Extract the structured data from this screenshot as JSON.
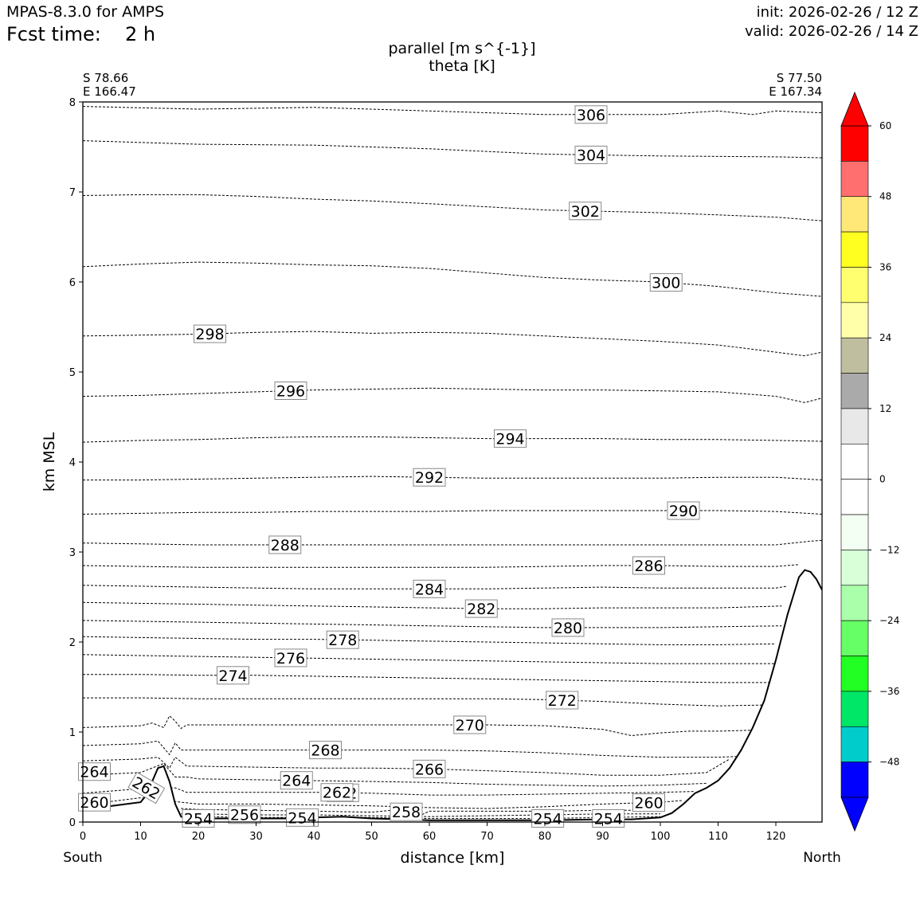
{
  "header": {
    "model": "MPAS-8.3.0 for AMPS",
    "fcst_label": "Fcst time:",
    "fcst_value": "2 h",
    "init": "init: 2026-02-26 / 12 Z",
    "valid": "valid: 2026-02-26 / 14 Z"
  },
  "chart_data": {
    "type": "line",
    "title": "parallel [m s^{-1}]",
    "subtitle": "theta [K]",
    "xlabel": "distance [km]",
    "ylabel": "km MSL",
    "xlim": [
      0,
      128
    ],
    "ylim": [
      0,
      8
    ],
    "xticks": [
      0,
      10,
      20,
      30,
      40,
      50,
      60,
      70,
      80,
      90,
      100,
      110,
      120
    ],
    "yticks": [
      0,
      1,
      2,
      3,
      4,
      5,
      6,
      7,
      8
    ],
    "left_end": {
      "lat": "S 78.66",
      "lon": "E 166.47",
      "direction": "South"
    },
    "right_end": {
      "lat": "S 77.50",
      "lon": "E 167.34",
      "direction": "North"
    },
    "terrain": {
      "x": [
        0,
        5,
        10,
        11,
        12,
        13,
        14,
        15,
        16,
        17,
        18,
        20,
        25,
        30,
        35,
        40,
        45,
        50,
        60,
        70,
        80,
        90,
        95,
        100,
        102,
        104,
        106,
        108,
        110,
        112,
        114,
        116,
        118,
        120,
        122,
        124,
        125,
        126,
        127,
        128
      ],
      "y": [
        0.15,
        0.18,
        0.22,
        0.3,
        0.45,
        0.6,
        0.62,
        0.45,
        0.2,
        0.06,
        0.04,
        0.04,
        0.04,
        0.04,
        0.04,
        0.05,
        0.06,
        0.04,
        0.02,
        0.02,
        0.02,
        0.03,
        0.03,
        0.05,
        0.1,
        0.2,
        0.32,
        0.38,
        0.46,
        0.6,
        0.8,
        1.05,
        1.35,
        1.8,
        2.3,
        2.72,
        2.8,
        2.78,
        2.7,
        2.58
      ]
    },
    "isentropes": [
      {
        "theta": 306,
        "x": [
          0,
          20,
          40,
          60,
          80,
          100,
          110,
          116,
          120,
          128
        ],
        "y": [
          7.95,
          7.92,
          7.94,
          7.9,
          7.86,
          7.86,
          7.9,
          7.86,
          7.9,
          7.88
        ],
        "label_at": 88
      },
      {
        "theta": 304,
        "x": [
          0,
          20,
          40,
          60,
          80,
          100,
          120,
          128
        ],
        "y": [
          7.57,
          7.53,
          7.52,
          7.48,
          7.42,
          7.4,
          7.39,
          7.38
        ],
        "label_at": 88
      },
      {
        "theta": 302,
        "x": [
          0,
          10,
          20,
          30,
          40,
          50,
          60,
          80,
          100,
          120,
          128
        ],
        "y": [
          6.96,
          6.97,
          6.97,
          6.95,
          6.92,
          6.9,
          6.87,
          6.8,
          6.77,
          6.72,
          6.68
        ],
        "label_at": 87
      },
      {
        "theta": 300,
        "x": [
          0,
          10,
          20,
          30,
          40,
          50,
          60,
          70,
          80,
          90,
          100,
          110,
          120,
          128
        ],
        "y": [
          6.17,
          6.2,
          6.22,
          6.21,
          6.19,
          6.18,
          6.15,
          6.1,
          6.05,
          6.02,
          6.0,
          5.95,
          5.88,
          5.84
        ],
        "label_at": 101
      },
      {
        "theta": 298,
        "x": [
          0,
          10,
          20,
          30,
          40,
          50,
          60,
          70,
          80,
          90,
          100,
          110,
          120,
          125,
          128
        ],
        "y": [
          5.4,
          5.41,
          5.42,
          5.44,
          5.45,
          5.43,
          5.44,
          5.43,
          5.4,
          5.37,
          5.34,
          5.3,
          5.22,
          5.18,
          5.22
        ],
        "label_at": 22
      },
      {
        "theta": 296,
        "x": [
          0,
          10,
          20,
          30,
          40,
          50,
          60,
          70,
          80,
          90,
          100,
          110,
          120,
          125,
          128
        ],
        "y": [
          4.73,
          4.74,
          4.76,
          4.78,
          4.8,
          4.81,
          4.82,
          4.81,
          4.8,
          4.8,
          4.79,
          4.78,
          4.73,
          4.66,
          4.71
        ],
        "label_at": 36
      },
      {
        "theta": 294,
        "x": [
          0,
          10,
          20,
          30,
          40,
          50,
          60,
          70,
          80,
          90,
          100,
          110,
          120,
          128
        ],
        "y": [
          4.22,
          4.24,
          4.25,
          4.27,
          4.28,
          4.28,
          4.27,
          4.26,
          4.26,
          4.26,
          4.25,
          4.25,
          4.24,
          4.23
        ],
        "label_at": 74
      },
      {
        "theta": 292,
        "x": [
          0,
          10,
          20,
          30,
          40,
          50,
          60,
          70,
          80,
          90,
          100,
          110,
          120,
          128
        ],
        "y": [
          3.8,
          3.8,
          3.81,
          3.82,
          3.83,
          3.84,
          3.83,
          3.82,
          3.82,
          3.82,
          3.82,
          3.83,
          3.83,
          3.8
        ],
        "label_at": 60
      },
      {
        "theta": 290,
        "x": [
          0,
          10,
          20,
          30,
          40,
          50,
          60,
          70,
          80,
          90,
          100,
          110,
          120,
          128
        ],
        "y": [
          3.42,
          3.43,
          3.44,
          3.44,
          3.45,
          3.45,
          3.45,
          3.46,
          3.46,
          3.46,
          3.46,
          3.46,
          3.45,
          3.42
        ],
        "label_at": 104
      },
      {
        "theta": 288,
        "x": [
          0,
          10,
          20,
          30,
          40,
          50,
          60,
          70,
          80,
          90,
          100,
          110,
          120,
          126,
          128
        ],
        "y": [
          3.1,
          3.09,
          3.08,
          3.08,
          3.08,
          3.08,
          3.08,
          3.08,
          3.08,
          3.08,
          3.08,
          3.08,
          3.08,
          3.12,
          3.13
        ],
        "label_at": 35
      },
      {
        "theta": 286,
        "x": [
          0,
          10,
          20,
          30,
          40,
          50,
          60,
          70,
          80,
          90,
          100,
          110,
          120,
          124
        ],
        "y": [
          2.85,
          2.84,
          2.83,
          2.83,
          2.83,
          2.83,
          2.83,
          2.83,
          2.84,
          2.85,
          2.85,
          2.84,
          2.84,
          2.86
        ],
        "label_at": 98
      },
      {
        "theta": 284,
        "x": [
          0,
          10,
          20,
          30,
          40,
          50,
          60,
          70,
          80,
          90,
          100,
          110,
          120,
          122
        ],
        "y": [
          2.63,
          2.62,
          2.61,
          2.6,
          2.59,
          2.59,
          2.59,
          2.59,
          2.6,
          2.61,
          2.6,
          2.6,
          2.6,
          2.62
        ],
        "label_at": 60
      },
      {
        "theta": 282,
        "x": [
          0,
          10,
          20,
          30,
          40,
          50,
          60,
          70,
          80,
          90,
          100,
          110,
          121
        ],
        "y": [
          2.44,
          2.43,
          2.42,
          2.41,
          2.4,
          2.39,
          2.38,
          2.37,
          2.37,
          2.38,
          2.38,
          2.38,
          2.4
        ],
        "label_at": 69
      },
      {
        "theta": 280,
        "x": [
          0,
          10,
          20,
          30,
          40,
          50,
          60,
          70,
          80,
          90,
          100,
          110,
          121
        ],
        "y": [
          2.24,
          2.23,
          2.22,
          2.21,
          2.2,
          2.19,
          2.18,
          2.17,
          2.16,
          2.16,
          2.16,
          2.17,
          2.18
        ],
        "label_at": 84
      },
      {
        "theta": 278,
        "x": [
          0,
          10,
          20,
          30,
          40,
          50,
          60,
          70,
          80,
          90,
          100,
          110,
          120
        ],
        "y": [
          2.06,
          2.05,
          2.04,
          2.03,
          2.03,
          2.02,
          2.01,
          2.0,
          1.99,
          1.98,
          1.97,
          1.97,
          1.98
        ],
        "label_at": 45
      },
      {
        "theta": 276,
        "x": [
          0,
          10,
          20,
          30,
          40,
          50,
          60,
          70,
          80,
          90,
          100,
          110,
          120
        ],
        "y": [
          1.86,
          1.85,
          1.84,
          1.83,
          1.82,
          1.81,
          1.8,
          1.79,
          1.78,
          1.77,
          1.76,
          1.76,
          1.76
        ],
        "label_at": 36
      },
      {
        "theta": 274,
        "x": [
          0,
          10,
          20,
          30,
          40,
          50,
          60,
          70,
          80,
          90,
          100,
          110,
          119
        ],
        "y": [
          1.64,
          1.64,
          1.63,
          1.63,
          1.62,
          1.61,
          1.6,
          1.59,
          1.58,
          1.57,
          1.56,
          1.55,
          1.55
        ],
        "label_at": 26
      },
      {
        "theta": 272,
        "x": [
          0,
          10,
          20,
          30,
          40,
          50,
          60,
          70,
          80,
          90,
          100,
          110,
          118
        ],
        "y": [
          1.38,
          1.38,
          1.37,
          1.37,
          1.37,
          1.37,
          1.37,
          1.37,
          1.36,
          1.34,
          1.31,
          1.29,
          1.3
        ],
        "label_at": 83
      },
      {
        "theta": 270,
        "x": [
          0,
          10,
          12,
          14,
          15,
          16,
          17,
          18,
          20,
          30,
          40,
          50,
          60,
          70,
          80,
          90,
          95,
          100,
          105,
          110,
          116
        ],
        "y": [
          1.05,
          1.07,
          1.1,
          1.05,
          1.18,
          1.12,
          1.04,
          1.08,
          1.08,
          1.08,
          1.08,
          1.08,
          1.08,
          1.08,
          1.07,
          1.03,
          0.96,
          0.99,
          1.01,
          1.01,
          1.02
        ],
        "label_at": 67
      },
      {
        "theta": 268,
        "x": [
          0,
          10,
          13,
          15,
          16,
          17,
          20,
          30,
          40,
          50,
          60,
          70,
          80,
          90,
          100,
          110,
          114
        ],
        "y": [
          0.85,
          0.87,
          0.9,
          0.75,
          0.88,
          0.8,
          0.8,
          0.8,
          0.8,
          0.8,
          0.8,
          0.79,
          0.77,
          0.74,
          0.72,
          0.72,
          0.73
        ],
        "label_at": 42
      },
      {
        "theta": 266,
        "x": [
          0,
          10,
          13,
          15,
          16,
          18,
          20,
          30,
          40,
          50,
          60,
          70,
          80,
          90,
          100,
          108,
          112
        ],
        "y": [
          0.68,
          0.7,
          0.72,
          0.6,
          0.72,
          0.62,
          0.62,
          0.61,
          0.6,
          0.6,
          0.59,
          0.57,
          0.55,
          0.52,
          0.52,
          0.55,
          0.7
        ],
        "label_at": 60
      },
      {
        "theta": 264,
        "x": [
          0,
          10,
          14,
          16,
          18,
          20,
          30,
          40,
          50,
          60,
          70,
          80,
          90,
          100,
          108
        ],
        "y": [
          0.52,
          0.55,
          0.65,
          0.5,
          0.5,
          0.48,
          0.47,
          0.46,
          0.45,
          0.44,
          0.42,
          0.41,
          0.4,
          0.41,
          0.43
        ],
        "label_at": 37
      },
      {
        "theta": 262,
        "x": [
          0,
          8,
          12,
          16,
          18,
          20,
          30,
          40,
          50,
          60,
          70,
          80,
          90,
          100,
          106
        ],
        "y": [
          0.32,
          0.36,
          0.38,
          0.38,
          0.33,
          0.33,
          0.33,
          0.33,
          0.32,
          0.3,
          0.3,
          0.31,
          0.32,
          0.33,
          0.34
        ],
        "label_at": 45
      },
      {
        "theta": 260,
        "x": [
          0,
          5,
          10,
          17,
          20,
          30,
          40,
          50,
          60,
          70,
          80,
          90,
          100,
          104
        ],
        "y": [
          0.2,
          0.23,
          0.27,
          0.22,
          0.2,
          0.2,
          0.19,
          0.18,
          0.16,
          0.15,
          0.17,
          0.2,
          0.22,
          0.24
        ],
        "label_at": 98
      },
      {
        "theta": 258,
        "x": [
          17,
          20,
          30,
          40,
          50,
          55,
          58,
          60,
          70,
          80,
          90,
          100
        ],
        "y": [
          0.15,
          0.14,
          0.13,
          0.12,
          0.11,
          0.14,
          0.06,
          0.12,
          0.12,
          0.12,
          0.13,
          0.13
        ],
        "label_at": 56
      },
      {
        "theta": 256,
        "x": [
          17,
          20,
          30,
          40,
          50,
          60,
          70,
          80,
          90,
          100
        ],
        "y": [
          0.09,
          0.09,
          0.08,
          0.08,
          0.07,
          0.06,
          0.07,
          0.08,
          0.09,
          0.09
        ],
        "label_at": 28
      },
      {
        "theta": 254,
        "x": [
          17,
          20,
          30,
          40,
          50,
          60,
          70,
          80,
          90,
          100
        ],
        "y": [
          0.06,
          0.06,
          0.05,
          0.05,
          0.05,
          0.04,
          0.04,
          0.04,
          0.05,
          0.06
        ],
        "label_at": 38
      }
    ],
    "extra_labels": [
      {
        "text": "264",
        "x": 2,
        "y": 0.56
      },
      {
        "text": "262",
        "x": 11,
        "y": 0.38,
        "rotate": 30
      },
      {
        "text": "260",
        "x": 2,
        "y": 0.22
      },
      {
        "text": "254",
        "x": 20,
        "y": 0.04
      },
      {
        "text": "262",
        "x": 44,
        "y": 0.33
      },
      {
        "text": "254",
        "x": 80.5,
        "y": 0.04
      },
      {
        "text": "254",
        "x": 91,
        "y": 0.04
      }
    ],
    "colorbar": {
      "ticks": [
        "60",
        "48",
        "36",
        "24",
        "12",
        "0",
        "−12",
        "−24",
        "−36",
        "−48"
      ],
      "tick_values": [
        60,
        48,
        36,
        24,
        12,
        0,
        -12,
        -24,
        -36,
        -48
      ],
      "levels_top_down": [
        60,
        54,
        48,
        42,
        36,
        30,
        24,
        18,
        12,
        6,
        0,
        -6,
        -12,
        -18,
        -24,
        -30,
        -36,
        -42,
        -48,
        -54
      ],
      "colors": [
        "#ff0000",
        "#ff6f6f",
        "#ffe878",
        "#ffff20",
        "#ffff70",
        "#ffffaa",
        "#bfbfa0",
        "#aaaaaa",
        "#e8e8e8",
        "#ffffff",
        "#ffffff",
        "#f2fff2",
        "#d8ffd8",
        "#aaffaa",
        "#66ff66",
        "#22ff22",
        "#00e666",
        "#00cccc",
        "#0000ff"
      ],
      "over_color": "#ff0000",
      "under_color": "#0000ff"
    }
  }
}
